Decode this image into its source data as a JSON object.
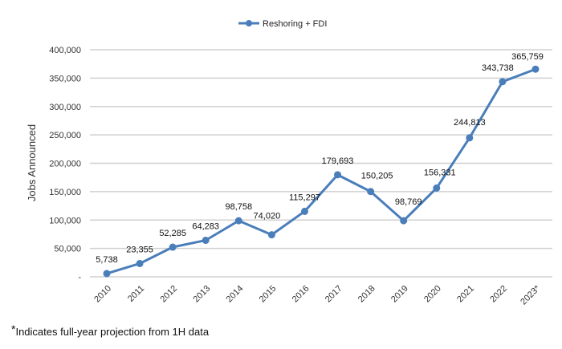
{
  "chart_data": {
    "type": "line",
    "title": "",
    "xlabel": "",
    "ylabel": "Jobs Announced",
    "categories": [
      "2010",
      "2011",
      "2012",
      "2013",
      "2014",
      "2015",
      "2016",
      "2017",
      "2018",
      "2019",
      "2020",
      "2021",
      "2022",
      "2023*"
    ],
    "series": [
      {
        "name": "Reshoring + FDI",
        "values": [
          5738,
          23355,
          52285,
          64283,
          98758,
          74020,
          115297,
          179693,
          150205,
          98769,
          156331,
          244813,
          343738,
          365759
        ],
        "data_labels": [
          "5,738",
          "23,355",
          "52,285",
          "64,283",
          "98,758",
          "74,020",
          "115,297",
          "179,693",
          "150,205",
          "98,769",
          "156,331",
          "244,813",
          "343,738",
          "365,759"
        ],
        "color": "#4a7ebb"
      }
    ],
    "ylim": [
      0,
      400000
    ],
    "yticks": [
      0,
      50000,
      100000,
      150000,
      200000,
      250000,
      300000,
      350000,
      400000
    ],
    "ytick_labels": [
      "-",
      "50,000",
      "100,000",
      "150,000",
      "200,000",
      "250,000",
      "300,000",
      "350,000",
      "400,000"
    ],
    "grid": true,
    "gridline_color": "#d0d0d0",
    "legend": "top-center",
    "markers": "circle"
  },
  "footnote": {
    "marker": "*",
    "text": "Indicates full-year projection from 1H data"
  }
}
